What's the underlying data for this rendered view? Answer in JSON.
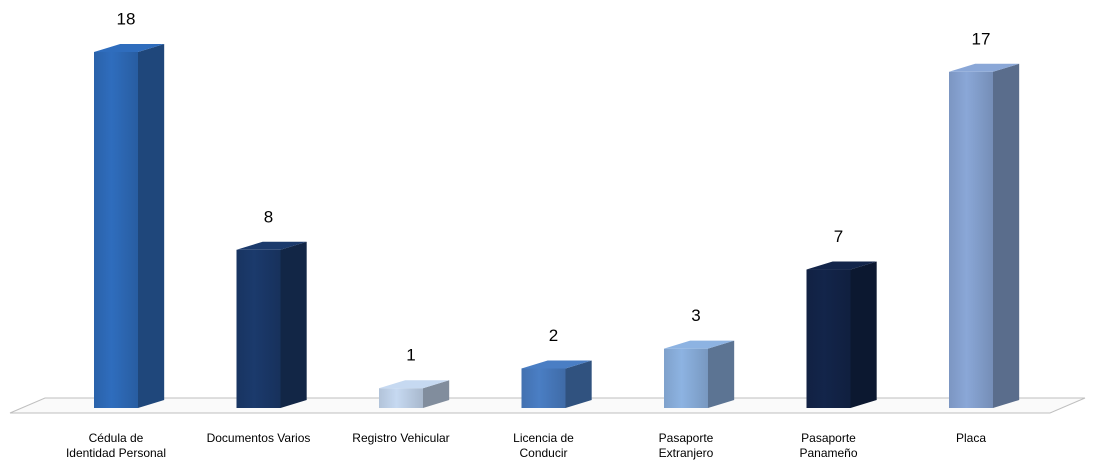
{
  "chart_data": {
    "type": "bar3d",
    "categories": [
      "Cédula de\nIdentidad Personal",
      "Documentos Varios",
      "Registro Vehicular",
      "Licencia de\nConducir",
      "Pasaporte\nExtranjero",
      "Pasaporte\nPanameño",
      "Placa"
    ],
    "values": [
      18,
      8,
      1,
      2,
      3,
      7,
      17
    ],
    "colors": [
      "#2f6dbd",
      "#1b3a6c",
      "#c6d9f1",
      "#4a7ec4",
      "#8db3e2",
      "#13254a",
      "#8aa7d7"
    ]
  }
}
